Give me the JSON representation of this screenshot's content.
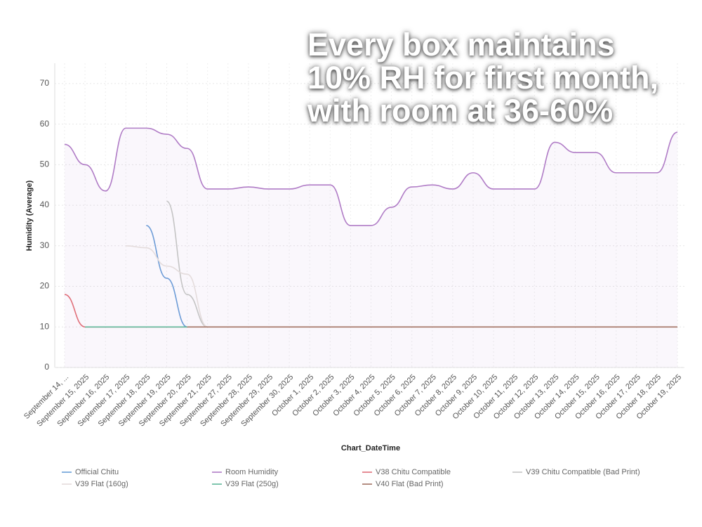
{
  "chart_data": {
    "type": "line",
    "annotation": "Every box maintains 10% RH for first month, with room at 36-60%",
    "x_label": "Chart_DateTime",
    "y_label": "Humidity (Average)",
    "categories": [
      "September 14, ...",
      "September 15, 2025",
      "September 16, 2025",
      "September 17, 2025",
      "September 18, 2025",
      "September 19, 2025",
      "September 20, 2025",
      "September 21, 2025",
      "September 27, 2025",
      "September 28, 2025",
      "September 29, 2025",
      "September 30, 2025",
      "October 1, 2025",
      "October 2, 2025",
      "October 3, 2025",
      "October 4, 2025",
      "October 5, 2025",
      "October 6, 2025",
      "October 7, 2025",
      "October 8, 2025",
      "October 9, 2025",
      "October 10, 2025",
      "October 11, 2025",
      "October 12, 2025",
      "October 13, 2025",
      "October 14, 2025",
      "October 15, 2025",
      "October 16, 2025",
      "October 17, 2025",
      "October 18, 2025",
      "October 19, 2025"
    ],
    "series": [
      {
        "name": "Official Chitu",
        "color": "#6a9fd8",
        "values": [
          null,
          null,
          null,
          null,
          35,
          22,
          10,
          null,
          null,
          null,
          null,
          null,
          null,
          null,
          null,
          null,
          null,
          null,
          null,
          null,
          null,
          null,
          null,
          null,
          null,
          null,
          null,
          null,
          null,
          null,
          null
        ]
      },
      {
        "name": "Room Humidity",
        "color": "#b07cc6",
        "fill": true,
        "values": [
          55,
          50,
          43.5,
          59,
          59,
          57.5,
          54,
          44,
          44,
          44.5,
          44,
          44,
          45,
          45,
          35,
          35,
          39.5,
          44.5,
          45,
          44,
          48,
          44,
          44,
          44,
          55.5,
          53,
          53,
          48,
          48,
          48,
          58
        ]
      },
      {
        "name": "V38 Chitu Compatible",
        "color": "#e0707a",
        "values": [
          18,
          10,
          10,
          10,
          10,
          10,
          10,
          null,
          null,
          null,
          null,
          null,
          null,
          null,
          null,
          null,
          null,
          null,
          null,
          null,
          null,
          null,
          null,
          null,
          null,
          null,
          null,
          null,
          null,
          null,
          null
        ]
      },
      {
        "name": "V39 Chitu Compatible (Bad Print)",
        "color": "#c4c4c4",
        "values": [
          null,
          null,
          null,
          null,
          null,
          41,
          18,
          10,
          null,
          null,
          null,
          null,
          null,
          null,
          null,
          null,
          null,
          null,
          null,
          null,
          null,
          null,
          null,
          null,
          null,
          null,
          null,
          null,
          null,
          null,
          null
        ]
      },
      {
        "name": "V39 Flat (160g)",
        "color": "#e4dcdc",
        "values": [
          null,
          null,
          null,
          30,
          29.5,
          25,
          23,
          10,
          null,
          null,
          null,
          null,
          null,
          null,
          null,
          null,
          null,
          null,
          null,
          null,
          null,
          null,
          null,
          null,
          null,
          null,
          null,
          null,
          null,
          null,
          null
        ]
      },
      {
        "name": "V39 Flat (250g)",
        "color": "#5fb89a",
        "values": [
          null,
          10,
          10,
          10,
          10,
          10,
          10,
          null,
          null,
          null,
          null,
          null,
          null,
          null,
          null,
          null,
          null,
          null,
          null,
          null,
          null,
          null,
          null,
          null,
          null,
          null,
          null,
          null,
          null,
          null,
          null
        ]
      },
      {
        "name": "V40 Flat (Bad Print)",
        "color": "#a27262",
        "values": [
          null,
          null,
          null,
          null,
          null,
          null,
          10,
          10,
          10,
          10,
          10,
          10,
          10,
          10,
          10,
          10,
          10,
          10,
          10,
          10,
          10,
          10,
          10,
          10,
          10,
          10,
          10,
          10,
          10,
          10,
          10
        ]
      }
    ],
    "ylim": [
      0,
      75
    ],
    "yticks": [
      0,
      10,
      20,
      30,
      40,
      50,
      60,
      70
    ],
    "grid": true
  }
}
